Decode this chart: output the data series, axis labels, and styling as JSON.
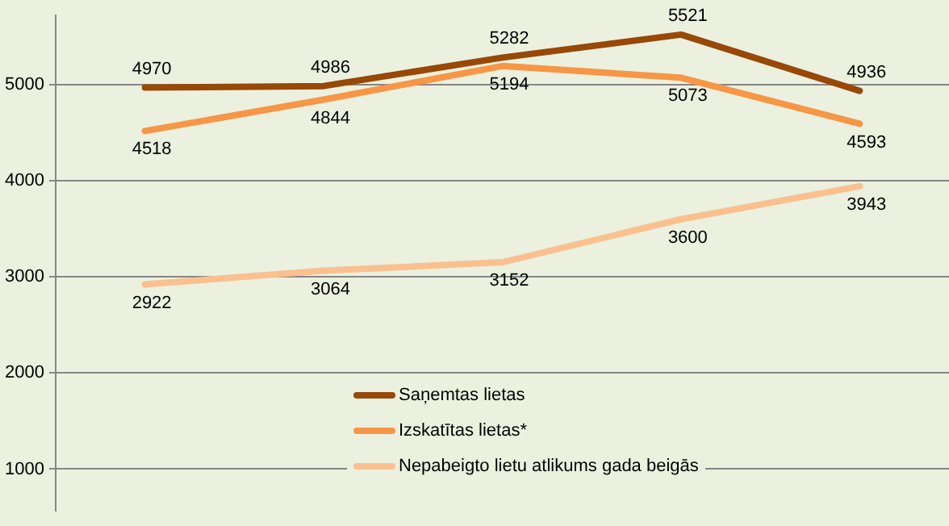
{
  "chart_data": {
    "type": "line",
    "categories": [
      null,
      null,
      null,
      null,
      null
    ],
    "series": [
      {
        "name": "Saņemtas lietas",
        "color": "#984807",
        "values": [
          4970,
          4986,
          5282,
          5521,
          4936
        ]
      },
      {
        "name": "Izskatītas lietas*",
        "color": "#f79646",
        "values": [
          4518,
          4844,
          5194,
          5073,
          4593
        ]
      },
      {
        "name": "Nepabeigto lietu atlikums gada beigās",
        "color": "#fac090",
        "values": [
          2922,
          3064,
          3152,
          3600,
          3943
        ]
      }
    ],
    "ylim": [
      569,
      5720
    ],
    "yticks": [
      1000,
      2000,
      3000,
      4000,
      5000
    ],
    "grid": "y",
    "legend": "bottom",
    "data_labels": true,
    "marker": "none",
    "line_style": "solid"
  }
}
